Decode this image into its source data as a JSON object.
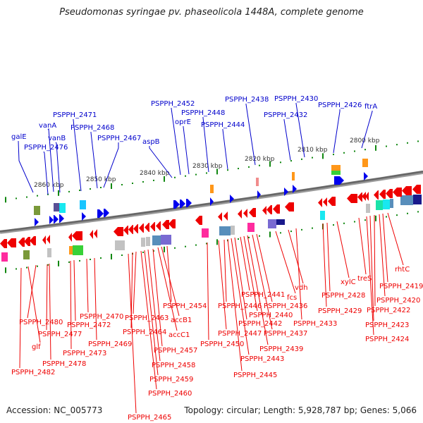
{
  "title": "Pseudomonas syringae pv. phaseolicola 1448A, complete genome",
  "footer": {
    "accession": "Accession: NC_005773",
    "topology": "Topology: circular; Length: 5,928,787 bp; Genes: 5,066"
  },
  "colors": {
    "forward_gene": "#0000ee",
    "reverse_gene": "#ee0000",
    "backbone": "#777777",
    "tick": "#118811"
  },
  "scale_labels": [
    "2860 kbp",
    "2850 kbp",
    "2840 kbp",
    "2830 kbp",
    "2820 kbp",
    "2810 kbp",
    "2800 kbp"
  ],
  "forward_labels": [
    "galE",
    "PSPPH_2476",
    "vanA",
    "vanB",
    "PSPPH_2471",
    "PSPPH_2468",
    "PSPPH_2467",
    "aspB",
    "PSPPH_2452",
    "oprE",
    "PSPPH_2448",
    "PSPPH_2444",
    "PSPPH_2438",
    "PSPPH_2432",
    "PSPPH_2430",
    "PSPPH_2426",
    "ftrA"
  ],
  "reverse_labels": [
    "PSPPH_2482",
    "glf",
    "PSPPH_2480",
    "PSPPH_2478",
    "PSPPH_2477",
    "PSPPH_2473",
    "PSPPH_2472",
    "PSPPH_2470",
    "PSPPH_2469",
    "PSPPH_2465",
    "PSPPH_2464",
    "PSPPH_2463",
    "PSPPH_2460",
    "PSPPH_2459",
    "PSPPH_2458",
    "PSPPH_2457",
    "accC1",
    "accB1",
    "PSPPH_2454",
    "PSPPH_2450",
    "PSPPH_2447",
    "PSPPH_2446",
    "PSPPH_2445",
    "PSPPH_2443",
    "PSPPH_2442",
    "PSPPH_2441",
    "PSPPH_2440",
    "PSPPH_2439",
    "PSPPH_2437",
    "PSPPH_2436",
    "fcs",
    "vdh",
    "PSPPH_2433",
    "PSPPH_2429",
    "PSPPH_2428",
    "xylC",
    "treS",
    "PSPPH_2424",
    "PSPPH_2423",
    "PSPPH_2422",
    "PSPPH_2420",
    "PSPPH_2419",
    "rhtC"
  ]
}
